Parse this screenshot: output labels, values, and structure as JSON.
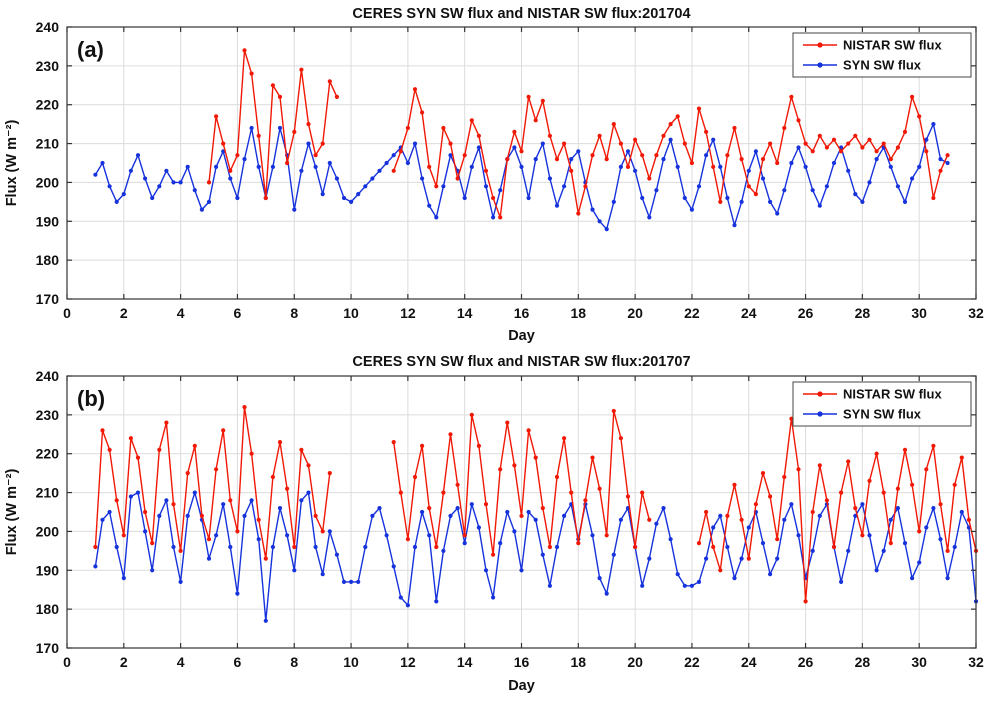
{
  "figure": {
    "background": "#ffffff",
    "axis_color": "#333333",
    "grid_color": "#dcdcdc"
  },
  "chart_data": [
    {
      "type": "line",
      "panel_label": "(a)",
      "title": "CERES SYN SW flux and NISTAR SW flux:201704",
      "xlabel": "Day",
      "ylabel": "Flux (W m⁻²)",
      "xlim": [
        0,
        32
      ],
      "ylim": [
        170,
        240
      ],
      "xticks": [
        0,
        2,
        4,
        6,
        8,
        10,
        12,
        14,
        16,
        18,
        20,
        22,
        24,
        26,
        28,
        30,
        32
      ],
      "yticks": [
        170,
        180,
        190,
        200,
        210,
        220,
        230,
        240
      ],
      "grid": true,
      "legend": {
        "position": "top-right",
        "entries": [
          {
            "label": "NISTAR SW flux",
            "color": "#f11805"
          },
          {
            "label": "SYN SW flux",
            "color": "#1632dd"
          }
        ]
      },
      "series": [
        {
          "name": "SYN SW flux",
          "color": "#1632dd",
          "x0": 1.0,
          "dx": 0.25,
          "y": [
            202,
            205,
            199,
            195,
            197,
            203,
            207,
            201,
            196,
            199,
            203,
            200,
            200,
            204,
            198,
            193,
            195,
            204,
            208,
            201,
            196,
            206,
            214,
            204,
            196,
            204,
            214,
            207,
            193,
            203,
            210,
            204,
            197,
            205,
            201,
            196,
            195,
            197,
            199,
            201,
            203,
            205,
            207,
            209,
            205,
            210,
            201,
            194,
            191,
            199,
            207,
            203,
            196,
            204,
            209,
            199,
            191,
            198,
            206,
            209,
            204,
            196,
            206,
            210,
            201,
            194,
            199,
            206,
            208,
            200,
            193,
            190,
            188,
            195,
            204,
            208,
            203,
            196,
            191,
            198,
            206,
            211,
            204,
            196,
            193,
            199,
            207,
            211,
            204,
            196,
            189,
            195,
            203,
            208,
            201,
            195,
            192,
            198,
            205,
            209,
            204,
            198,
            194,
            199,
            205,
            209,
            203,
            197,
            195,
            200,
            206,
            209,
            204,
            199,
            195,
            201,
            204,
            211,
            215,
            206,
            205
          ]
        },
        {
          "name": "NISTAR SW flux",
          "color": "#f11805",
          "x0": 5.0,
          "dx": 0.25,
          "y": [
            200,
            217,
            210,
            203,
            207,
            234,
            228,
            212,
            196,
            225,
            222,
            205,
            213,
            229,
            215,
            207,
            210,
            226,
            222,
            null,
            null,
            null,
            null,
            null,
            null,
            null,
            203,
            208,
            214,
            224,
            218,
            204,
            199,
            214,
            210,
            201,
            207,
            216,
            212,
            203,
            196,
            191,
            206,
            213,
            208,
            222,
            216,
            221,
            212,
            206,
            210,
            203,
            192,
            199,
            207,
            212,
            206,
            215,
            210,
            204,
            211,
            207,
            201,
            207,
            212,
            215,
            217,
            210,
            205,
            219,
            213,
            204,
            195,
            207,
            214,
            206,
            199,
            197,
            206,
            210,
            205,
            214,
            222,
            216,
            210,
            208,
            212,
            209,
            211,
            208,
            210,
            212,
            209,
            211,
            208,
            210,
            206,
            209,
            213,
            222,
            217,
            208,
            196,
            203,
            207
          ]
        }
      ]
    },
    {
      "type": "line",
      "panel_label": "(b)",
      "title": "CERES SYN SW flux and NISTAR SW flux:201707",
      "xlabel": "Day",
      "ylabel": "Flux (W m⁻²)",
      "xlim": [
        0,
        32
      ],
      "ylim": [
        170,
        240
      ],
      "xticks": [
        0,
        2,
        4,
        6,
        8,
        10,
        12,
        14,
        16,
        18,
        20,
        22,
        24,
        26,
        28,
        30,
        32
      ],
      "yticks": [
        170,
        180,
        190,
        200,
        210,
        220,
        230,
        240
      ],
      "grid": true,
      "legend": {
        "position": "top-right",
        "entries": [
          {
            "label": "NISTAR SW flux",
            "color": "#f11805"
          },
          {
            "label": "SYN SW flux",
            "color": "#1632dd"
          }
        ]
      },
      "series": [
        {
          "name": "SYN SW flux",
          "color": "#1632dd",
          "x0": 1.0,
          "dx": 0.25,
          "y": [
            191,
            203,
            205,
            196,
            188,
            209,
            210,
            200,
            190,
            204,
            208,
            196,
            187,
            204,
            210,
            203,
            193,
            199,
            207,
            196,
            184,
            204,
            208,
            198,
            177,
            196,
            206,
            199,
            190,
            208,
            210,
            196,
            189,
            200,
            194,
            187,
            187,
            187,
            196,
            204,
            206,
            199,
            191,
            183,
            181,
            196,
            205,
            199,
            182,
            195,
            204,
            206,
            197,
            207,
            201,
            190,
            183,
            197,
            205,
            200,
            190,
            205,
            203,
            194,
            186,
            196,
            204,
            207,
            198,
            207,
            199,
            188,
            184,
            194,
            203,
            206,
            196,
            186,
            193,
            202,
            206,
            198,
            189,
            186,
            186,
            187,
            193,
            201,
            204,
            196,
            188,
            193,
            201,
            205,
            197,
            189,
            193,
            203,
            207,
            199,
            188,
            195,
            204,
            207,
            196,
            187,
            195,
            204,
            207,
            199,
            190,
            195,
            203,
            206,
            197,
            188,
            192,
            201,
            206,
            198,
            188,
            196,
            205,
            201,
            182
          ]
        },
        {
          "name": "NISTAR SW flux",
          "color": "#f11805",
          "x0": 1.0,
          "dx": 0.25,
          "y": [
            196,
            226,
            221,
            208,
            199,
            224,
            219,
            205,
            197,
            221,
            228,
            207,
            195,
            215,
            222,
            204,
            198,
            216,
            226,
            208,
            200,
            232,
            220,
            203,
            193,
            214,
            223,
            211,
            196,
            221,
            217,
            204,
            200,
            215,
            null,
            null,
            null,
            null,
            null,
            null,
            null,
            null,
            223,
            210,
            198,
            214,
            222,
            206,
            196,
            210,
            225,
            212,
            199,
            230,
            222,
            207,
            194,
            216,
            228,
            217,
            204,
            226,
            219,
            206,
            196,
            214,
            224,
            210,
            197,
            208,
            219,
            211,
            199,
            231,
            224,
            209,
            196,
            210,
            203,
            null,
            null,
            null,
            null,
            null,
            null,
            197,
            205,
            196,
            190,
            204,
            212,
            203,
            193,
            207,
            215,
            209,
            198,
            214,
            229,
            216,
            182,
            205,
            217,
            208,
            196,
            210,
            218,
            206,
            199,
            213,
            220,
            210,
            197,
            211,
            221,
            212,
            200,
            216,
            222,
            207,
            195,
            212,
            219,
            203,
            195
          ]
        }
      ]
    }
  ]
}
